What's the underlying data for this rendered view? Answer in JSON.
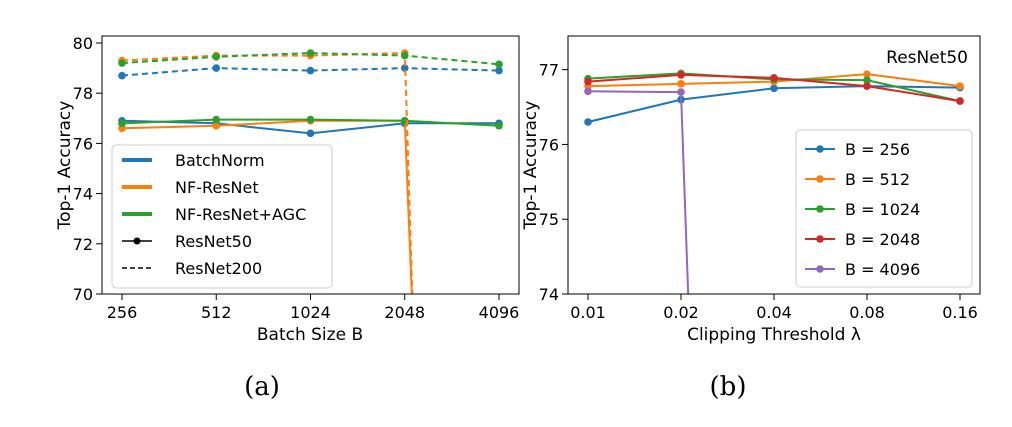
{
  "colors": {
    "blue": "#1f77b4",
    "orange": "#ff7f0e",
    "green": "#2ca02c",
    "red": "#d62728",
    "purple": "#9467bd"
  },
  "chart_data": [
    {
      "type": "line",
      "caption": "(a)",
      "xlabel": "Batch Size B",
      "ylabel": "Top-1 Accuracy",
      "categories": [
        "256",
        "512",
        "1024",
        "2048",
        "4096"
      ],
      "ylim": [
        70,
        80
      ],
      "yticks": [
        70,
        72,
        74,
        76,
        78,
        80
      ],
      "grid": false,
      "legend_placement": "lower-left",
      "legend": [
        {
          "label": "BatchNorm",
          "style": "color",
          "color": "#1f77b4"
        },
        {
          "label": "NF-ResNet",
          "style": "color",
          "color": "#ff7f0e"
        },
        {
          "label": "NF-ResNet+AGC",
          "style": "color",
          "color": "#2ca02c"
        },
        {
          "label": "ResNet50",
          "style": "solid-marker"
        },
        {
          "label": "ResNet200",
          "style": "dashed"
        }
      ],
      "series": [
        {
          "method": "BatchNorm",
          "model": "ResNet50",
          "color": "#1f77b4",
          "dash": false,
          "values": [
            76.9,
            76.8,
            76.4,
            76.8,
            76.8
          ]
        },
        {
          "method": "NF-ResNet",
          "model": "ResNet50",
          "color": "#ff7f0e",
          "dash": false,
          "values": [
            76.6,
            76.7,
            76.9,
            76.9,
            null
          ],
          "drop_after_index": 3
        },
        {
          "method": "NF-ResNet+AGC",
          "model": "ResNet50",
          "color": "#2ca02c",
          "dash": false,
          "values": [
            76.8,
            76.95,
            76.95,
            76.9,
            76.7
          ]
        },
        {
          "method": "BatchNorm",
          "model": "ResNet200",
          "color": "#1f77b4",
          "dash": true,
          "values": [
            78.7,
            79.0,
            78.9,
            79.0,
            78.9
          ]
        },
        {
          "method": "NF-ResNet",
          "model": "ResNet200",
          "color": "#ff7f0e",
          "dash": true,
          "values": [
            79.3,
            79.5,
            79.5,
            79.6,
            null
          ],
          "drop_after_index": 3
        },
        {
          "method": "NF-ResNet+AGC",
          "model": "ResNet200",
          "color": "#2ca02c",
          "dash": true,
          "values": [
            79.2,
            79.45,
            79.6,
            79.5,
            79.15
          ]
        }
      ]
    },
    {
      "type": "line",
      "caption": "(b)",
      "title": "ResNet50",
      "xlabel": "Clipping Threshold λ",
      "ylabel": "Top-1 Accuracy",
      "categories": [
        "0.01",
        "0.02",
        "0.04",
        "0.08",
        "0.16"
      ],
      "ylim": [
        74,
        77.45
      ],
      "yticks": [
        74,
        75,
        76,
        77
      ],
      "grid": false,
      "legend_placement": "lower-right",
      "series": [
        {
          "name": "B = 256",
          "color": "#1f77b4",
          "values": [
            76.3,
            76.6,
            76.75,
            76.78,
            76.76
          ]
        },
        {
          "name": "B = 512",
          "color": "#ff7f0e",
          "values": [
            76.78,
            76.81,
            76.84,
            76.94,
            76.78
          ]
        },
        {
          "name": "B = 1024",
          "color": "#2ca02c",
          "values": [
            76.88,
            76.95,
            76.87,
            76.86,
            76.58
          ]
        },
        {
          "name": "B = 2048",
          "color": "#d62728",
          "values": [
            76.84,
            76.93,
            76.89,
            76.78,
            76.58
          ]
        },
        {
          "name": "B = 4096",
          "color": "#9467bd",
          "values": [
            76.71,
            76.7,
            null,
            null,
            null
          ],
          "drop_after_index": 1
        }
      ]
    }
  ]
}
